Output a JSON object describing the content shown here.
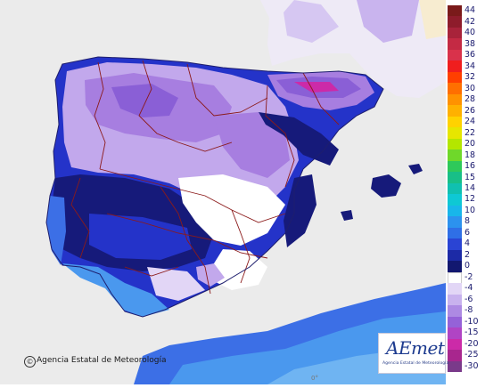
{
  "map": {
    "colors": {
      "sea": "#ebebeb",
      "france": "#eeeaf6",
      "africa": "#f7ecd0",
      "border_line": "#8b1a1a",
      "coast_line": "#1e1e6e",
      "lavender_light": "#d6c7f2",
      "lavender": "#c2a8ec",
      "purple": "#a77ee0",
      "violet_dark": "#8a5fd6",
      "white_zone": "#ffffff",
      "blue_navy": "#161a7a",
      "blue_mid": "#2433c9",
      "blue_light": "#3c6fe6",
      "blue_sky": "#4a98ee"
    },
    "copyright_text": "Agencia Estatal de Meteorología",
    "copyright_symbol": "©",
    "logo_text": "AEmet",
    "logo_subtext": "Agencia Estatal de Meteorología",
    "bottom_label": "0°"
  },
  "legend": {
    "ticks": [
      {
        "label": "44",
        "color": "#7a1a1a"
      },
      {
        "label": "42",
        "color": "#8e1c2b"
      },
      {
        "label": "40",
        "color": "#a8233a"
      },
      {
        "label": "38",
        "color": "#c42a44"
      },
      {
        "label": "36",
        "color": "#d9324b"
      },
      {
        "label": "34",
        "color": "#f01e1e"
      },
      {
        "label": "32",
        "color": "#ff3f00"
      },
      {
        "label": "30",
        "color": "#ff6f00"
      },
      {
        "label": "28",
        "color": "#ff9200"
      },
      {
        "label": "26",
        "color": "#ffb100"
      },
      {
        "label": "24",
        "color": "#ffd200"
      },
      {
        "label": "22",
        "color": "#e6e600"
      },
      {
        "label": "20",
        "color": "#b4e600"
      },
      {
        "label": "18",
        "color": "#6fd82a"
      },
      {
        "label": "16",
        "color": "#2ec95a"
      },
      {
        "label": "15",
        "color": "#18bf87"
      },
      {
        "label": "14",
        "color": "#10c0b0"
      },
      {
        "label": "12",
        "color": "#0ec8d4"
      },
      {
        "label": "10",
        "color": "#18b6ea"
      },
      {
        "label": "8",
        "color": "#2c92ee"
      },
      {
        "label": "6",
        "color": "#2f6fe6"
      },
      {
        "label": "4",
        "color": "#2a44d4"
      },
      {
        "label": "2",
        "color": "#1c2aa6"
      },
      {
        "label": "0",
        "color": "#121870"
      },
      {
        "label": "-2",
        "color": "#ffffff"
      },
      {
        "label": "-4",
        "color": "#e2d6f6"
      },
      {
        "label": "-6",
        "color": "#c8b2ee"
      },
      {
        "label": "-8",
        "color": "#ad8ae3"
      },
      {
        "label": "-10",
        "color": "#9562d8"
      },
      {
        "label": "-15",
        "color": "#b044c4"
      },
      {
        "label": "-20",
        "color": "#cc2aa8"
      },
      {
        "label": "-25",
        "color": "#a8268e"
      },
      {
        "label": "-30",
        "color": "#7a3a8a"
      }
    ]
  }
}
